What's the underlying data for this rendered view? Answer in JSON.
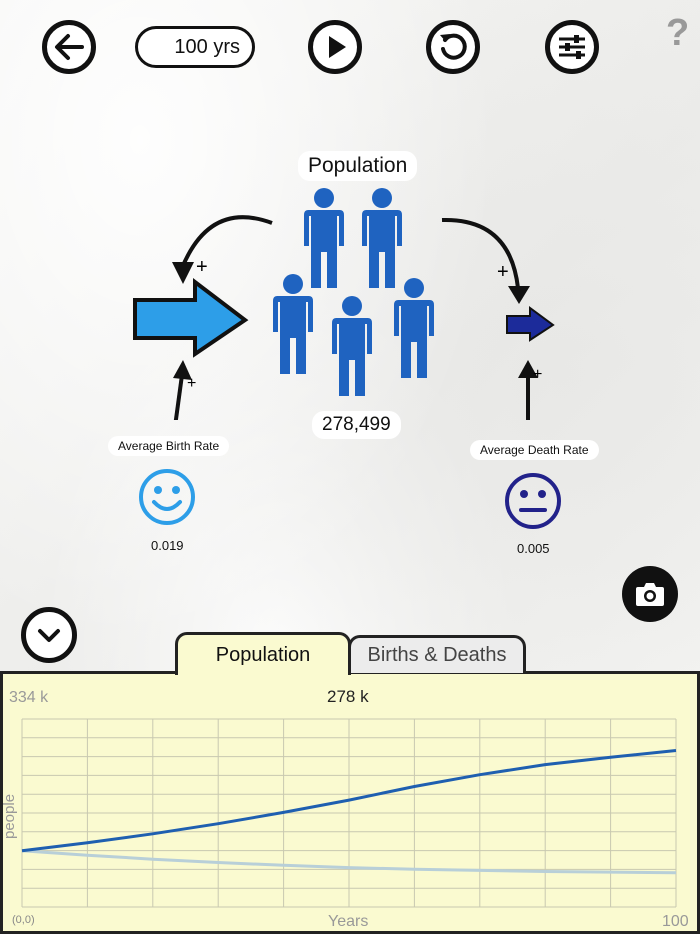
{
  "toolbar": {
    "duration": "100 yrs",
    "help": "?"
  },
  "diagram": {
    "stock_label": "Population",
    "population_value": "278,499",
    "birth_label": "Average Birth Rate",
    "birth_value": "0.019",
    "death_label": "Average Death Rate",
    "death_value": "0.005",
    "plus": "+"
  },
  "tabs": [
    {
      "label": "Population",
      "active": true
    },
    {
      "label": "Births & Deaths",
      "active": false
    }
  ],
  "chart_data": {
    "type": "line",
    "ymax_label": "334 k",
    "current_label": "278 k",
    "xlabel": "Years",
    "ylabel": "people",
    "origin_label": "(0,0)",
    "xmax_label": "100",
    "xlim": [
      0,
      100
    ],
    "ylim": [
      0,
      334
    ],
    "series": [
      {
        "color": "#1f5fb0",
        "x": [
          0,
          10,
          20,
          30,
          40,
          50,
          60,
          70,
          80,
          90,
          100
        ],
        "values": [
          100,
          114,
          130,
          148,
          168,
          190,
          214,
          235,
          253,
          266,
          278
        ]
      },
      {
        "color": "#b8cfd8",
        "x": [
          0,
          10,
          20,
          30,
          40,
          50,
          60,
          70,
          80,
          90,
          100
        ],
        "values": [
          100,
          92,
          85,
          79,
          74,
          70,
          67,
          65,
          63,
          62,
          61
        ]
      }
    ]
  },
  "colors": {
    "birth_arrow": "#2d9ee8",
    "death_arrow": "#1c2b9a",
    "people": "#1f63c0",
    "happy_face": "#2d9ee8",
    "neutral_face": "#22228a"
  },
  "icons": [
    "back-arrow-icon",
    "play-icon",
    "reset-icon",
    "settings-sliders-icon",
    "help-icon",
    "camera-icon",
    "collapse-chevron-icon",
    "happy-face-icon",
    "neutral-face-icon",
    "person-icon"
  ]
}
